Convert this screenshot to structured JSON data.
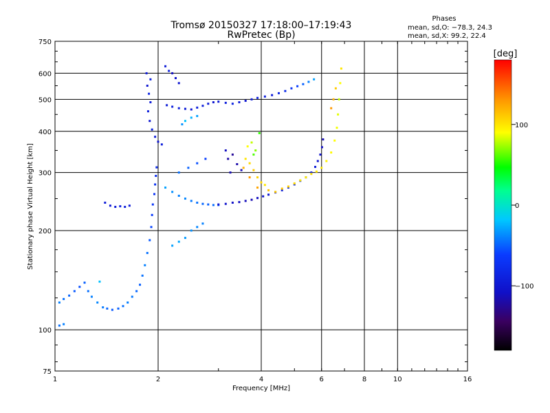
{
  "header": {
    "title_line1": "Tromsø 20150327 17:18:00–17:19:43",
    "title_line2": "RwPretec (Bp)"
  },
  "stats": {
    "heading": "Phases",
    "line_o": "mean, sd,O: −78.3, 24.3",
    "line_x": "mean, sd,X:  99.2, 22.4"
  },
  "colorbar": {
    "unit_label": "[deg]",
    "tick_labels": [
      "100",
      "0",
      "−100"
    ],
    "tick_values": [
      100,
      0,
      -100
    ],
    "range": [
      -180,
      180
    ]
  },
  "chart_data": {
    "type": "scatter",
    "xlabel": "Frequency [MHz]",
    "ylabel": "Stationary phase Virtual Height [km]",
    "xscale": "log",
    "yscale": "log",
    "xlim": [
      1,
      16
    ],
    "ylim": [
      75,
      750
    ],
    "x_ticks": [
      1,
      2,
      4,
      6,
      8,
      10,
      16
    ],
    "x_tick_labels": [
      "1",
      "2",
      "4",
      "6",
      "8",
      "10",
      "16"
    ],
    "y_ticks": [
      75,
      100,
      200,
      300,
      400,
      500,
      600,
      750
    ],
    "y_tick_labels": [
      "75",
      "100",
      "200",
      "300",
      "400",
      "500",
      "600",
      "750"
    ],
    "grid": true,
    "color_scale": "rainbow",
    "color_by": "phase (deg)",
    "series": [
      {
        "points": [
          [
            1.03,
            121,
            -40
          ],
          [
            1.06,
            124,
            -45
          ],
          [
            1.1,
            127,
            -48
          ],
          [
            1.14,
            131,
            -52
          ],
          [
            1.18,
            135,
            -55
          ],
          [
            1.22,
            139,
            -50
          ],
          [
            1.25,
            131,
            -45
          ],
          [
            1.28,
            126,
            -40
          ],
          [
            1.33,
            121,
            -38
          ],
          [
            1.38,
            117,
            -42
          ],
          [
            1.42,
            116,
            -48
          ],
          [
            1.47,
            115,
            -52
          ],
          [
            1.53,
            116,
            -50
          ],
          [
            1.58,
            118,
            -45
          ],
          [
            1.63,
            121,
            -40
          ],
          [
            1.68,
            126,
            -42
          ],
          [
            1.73,
            131,
            -48
          ],
          [
            1.77,
            137,
            -50
          ],
          [
            1.8,
            146,
            -45
          ],
          [
            1.83,
            157,
            -40
          ],
          [
            1.86,
            171,
            -45
          ],
          [
            1.89,
            187,
            -52
          ],
          [
            1.91,
            205,
            -58
          ],
          [
            1.92,
            223,
            -62
          ],
          [
            1.93,
            240,
            -66
          ],
          [
            1.95,
            258,
            -70
          ],
          [
            1.96,
            276,
            -72
          ],
          [
            1.97,
            293,
            -75
          ],
          [
            1.98,
            311,
            -78
          ],
          [
            1.03,
            103,
            -45
          ],
          [
            1.06,
            104,
            -40
          ],
          [
            1.4,
            243,
            -95
          ],
          [
            1.45,
            238,
            -98
          ],
          [
            1.5,
            236,
            -95
          ],
          [
            1.55,
            237,
            -90
          ],
          [
            1.6,
            236,
            -92
          ],
          [
            1.65,
            238,
            -95
          ],
          [
            1.35,
            140,
            -20
          ]
        ]
      },
      {
        "points": [
          [
            1.85,
            600,
            -95
          ],
          [
            1.9,
            575,
            -90
          ],
          [
            1.86,
            550,
            -100
          ],
          [
            1.88,
            520,
            -85
          ],
          [
            1.9,
            490,
            -95
          ],
          [
            1.87,
            460,
            -92
          ],
          [
            1.89,
            430,
            -100
          ],
          [
            1.92,
            405,
            -88
          ],
          [
            1.96,
            385,
            -95
          ],
          [
            2.0,
            372,
            -100
          ],
          [
            2.05,
            365,
            -92
          ],
          [
            2.12,
            480,
            -95
          ],
          [
            2.2,
            475,
            -90
          ],
          [
            2.3,
            470,
            -92
          ],
          [
            2.4,
            468,
            -95
          ],
          [
            2.5,
            466,
            -98
          ],
          [
            2.6,
            472,
            -90
          ],
          [
            2.7,
            478,
            -92
          ],
          [
            2.8,
            485,
            -95
          ],
          [
            2.9,
            490,
            -100
          ],
          [
            3.0,
            492,
            -95
          ],
          [
            3.15,
            488,
            -92
          ],
          [
            3.3,
            485,
            -88
          ],
          [
            3.45,
            490,
            -95
          ],
          [
            3.6,
            495,
            -100
          ],
          [
            3.75,
            500,
            -95
          ],
          [
            3.9,
            505,
            -90
          ],
          [
            4.1,
            510,
            -92
          ],
          [
            4.3,
            515,
            -95
          ],
          [
            4.5,
            522,
            -85
          ],
          [
            4.7,
            530,
            -80
          ],
          [
            4.9,
            540,
            -70
          ],
          [
            5.1,
            548,
            -60
          ],
          [
            5.3,
            556,
            -50
          ],
          [
            5.5,
            565,
            -40
          ],
          [
            5.7,
            575,
            -30
          ],
          [
            2.4,
            430,
            -20
          ],
          [
            2.5,
            440,
            -25
          ],
          [
            2.6,
            445,
            -30
          ],
          [
            2.35,
            420,
            -35
          ],
          [
            2.2,
            600,
            -110
          ],
          [
            2.25,
            580,
            -105
          ],
          [
            2.3,
            560,
            -100
          ],
          [
            2.1,
            630,
            -95
          ],
          [
            2.15,
            610,
            -90
          ]
        ]
      },
      {
        "points": [
          [
            2.3,
            255,
            -40
          ],
          [
            2.4,
            250,
            -38
          ],
          [
            2.5,
            246,
            -42
          ],
          [
            2.6,
            243,
            -45
          ],
          [
            2.7,
            241,
            -48
          ],
          [
            2.8,
            240,
            -50
          ],
          [
            2.9,
            239,
            -46
          ],
          [
            3.0,
            239,
            -48
          ],
          [
            2.2,
            262,
            -35
          ],
          [
            2.1,
            270,
            -30
          ],
          [
            2.3,
            300,
            -45
          ],
          [
            2.45,
            310,
            -50
          ],
          [
            2.6,
            320,
            -55
          ],
          [
            2.75,
            330,
            -60
          ],
          [
            2.2,
            180,
            -30
          ],
          [
            2.3,
            185,
            -28
          ],
          [
            2.4,
            190,
            -32
          ],
          [
            2.5,
            200,
            -35
          ],
          [
            2.6,
            205,
            -38
          ],
          [
            2.7,
            210,
            -40
          ]
        ]
      },
      {
        "points": [
          [
            3.0,
            240,
            -100
          ],
          [
            3.15,
            241,
            -105
          ],
          [
            3.3,
            243,
            -108
          ],
          [
            3.45,
            244,
            -110
          ],
          [
            3.6,
            246,
            -112
          ],
          [
            3.75,
            248,
            -115
          ],
          [
            3.9,
            251,
            -110
          ],
          [
            4.05,
            254,
            -105
          ],
          [
            4.2,
            257,
            -100
          ],
          [
            4.4,
            261,
            -95
          ],
          [
            4.6,
            265,
            -90
          ],
          [
            4.8,
            270,
            -85
          ],
          [
            5.0,
            276,
            -82
          ],
          [
            5.2,
            283,
            -80
          ],
          [
            5.4,
            290,
            -85
          ],
          [
            5.6,
            300,
            -90
          ],
          [
            5.75,
            312,
            -95
          ],
          [
            5.85,
            325,
            -100
          ],
          [
            5.95,
            340,
            -105
          ],
          [
            6.02,
            358,
            -110
          ],
          [
            6.06,
            378,
            -115
          ],
          [
            3.2,
            330,
            -120
          ],
          [
            3.3,
            340,
            -125
          ],
          [
            3.4,
            318,
            -118
          ],
          [
            3.5,
            305,
            -115
          ],
          [
            3.15,
            350,
            -110
          ],
          [
            3.25,
            300,
            -115
          ]
        ]
      },
      {
        "points": [
          [
            3.6,
            330,
            100
          ],
          [
            3.7,
            320,
            105
          ],
          [
            3.8,
            305,
            110
          ],
          [
            3.9,
            290,
            108
          ],
          [
            4.0,
            280,
            105
          ],
          [
            4.1,
            275,
            100
          ],
          [
            3.65,
            360,
            90
          ],
          [
            3.75,
            370,
            80
          ],
          [
            3.85,
            350,
            70
          ],
          [
            3.55,
            310,
            120
          ],
          [
            3.7,
            290,
            130
          ],
          [
            3.9,
            270,
            125
          ],
          [
            4.2,
            265,
            115
          ],
          [
            4.4,
            262,
            110
          ],
          [
            4.6,
            268,
            112
          ],
          [
            4.8,
            272,
            108
          ],
          [
            5.0,
            278,
            105
          ],
          [
            5.2,
            284,
            100
          ],
          [
            5.4,
            290,
            98
          ],
          [
            5.6,
            297,
            102
          ],
          [
            5.8,
            302,
            100
          ],
          [
            6.0,
            310,
            98
          ],
          [
            6.2,
            325,
            95
          ],
          [
            6.4,
            345,
            92
          ],
          [
            6.55,
            375,
            90
          ],
          [
            6.65,
            410,
            88
          ],
          [
            6.7,
            450,
            85
          ],
          [
            6.75,
            500,
            80
          ],
          [
            6.8,
            560,
            90
          ],
          [
            6.85,
            620,
            100
          ],
          [
            6.6,
            540,
            110
          ],
          [
            6.5,
            500,
            120
          ],
          [
            6.4,
            470,
            130
          ],
          [
            3.8,
            340,
            60
          ],
          [
            3.95,
            395,
            55
          ]
        ]
      }
    ]
  }
}
